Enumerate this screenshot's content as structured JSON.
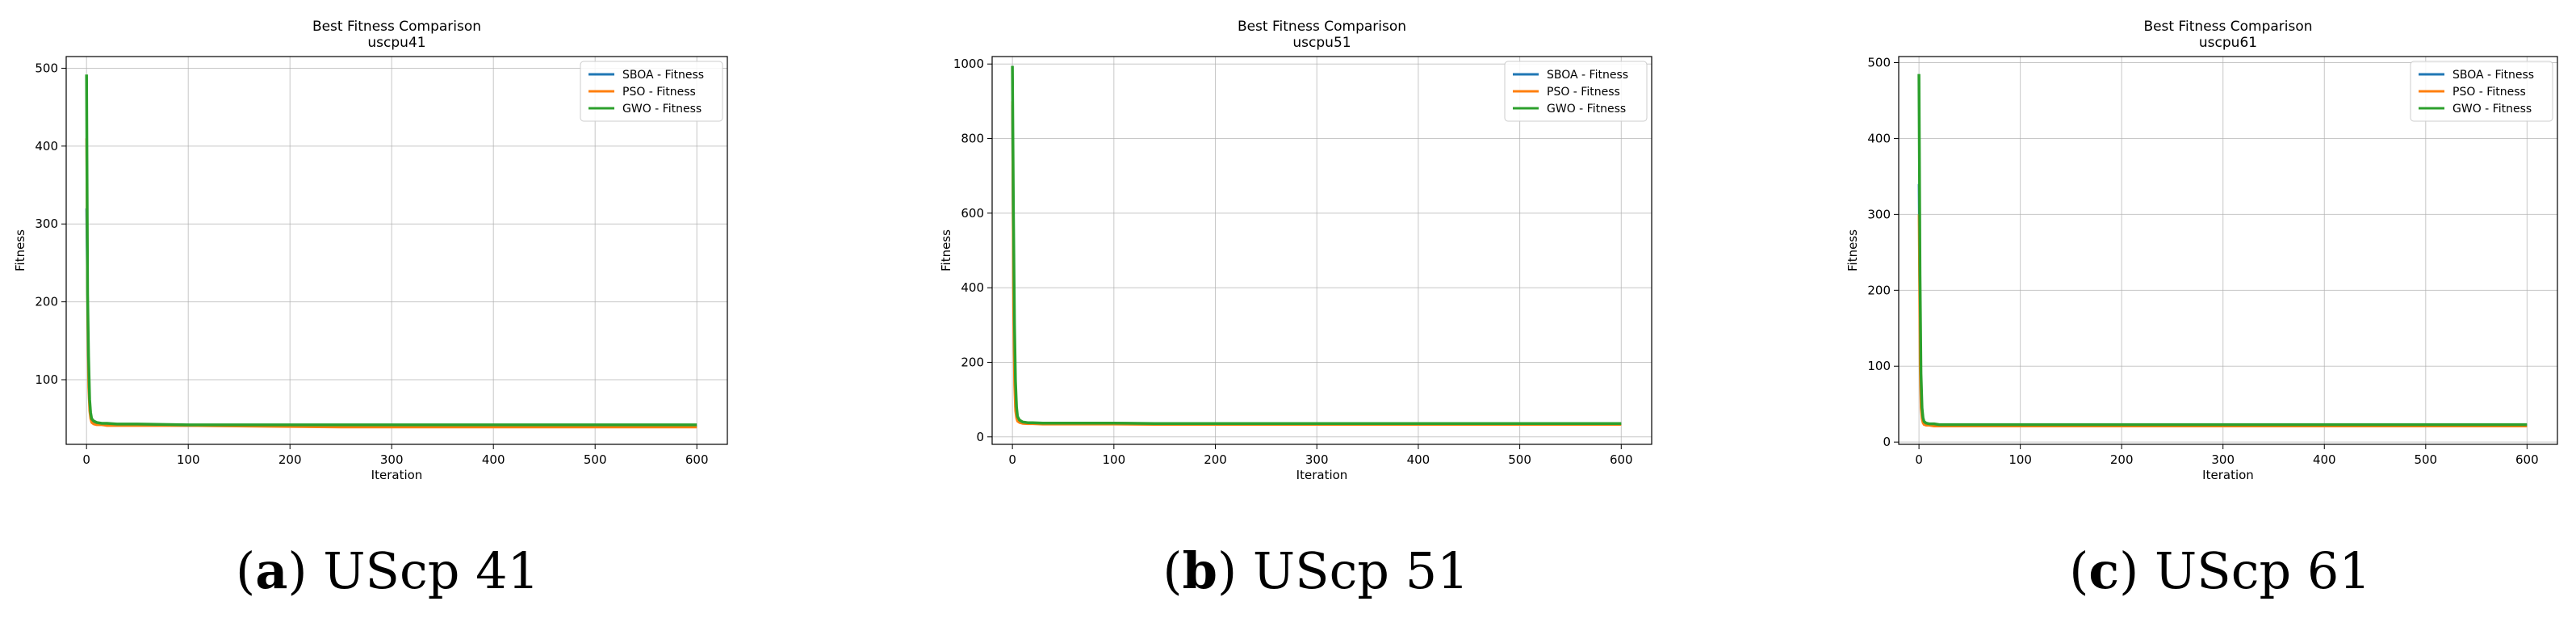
{
  "chart_data": [
    {
      "type": "line",
      "title": "Best Fitness Comparison",
      "subtitle": "uscpu41",
      "xlabel": "Iteration",
      "ylabel": "Fitness",
      "xlim": [
        -20,
        630
      ],
      "ylim": [
        17,
        515
      ],
      "xticks": [
        0,
        100,
        200,
        300,
        400,
        500,
        600
      ],
      "yticks": [
        100,
        200,
        300,
        400,
        500
      ],
      "grid": true,
      "legend_position": "top-right",
      "caption": {
        "letter": "a",
        "text": " UScp 41"
      },
      "series": [
        {
          "name": "SBOA - Fitness",
          "color": "#1f77b4",
          "x": [
            0,
            1,
            2,
            3,
            4,
            5,
            7,
            10,
            15,
            20,
            30,
            50,
            100,
            250,
            600
          ],
          "y": [
            320,
            200,
            110,
            70,
            55,
            48,
            45,
            44,
            43,
            43,
            42,
            42,
            41,
            40,
            40
          ]
        },
        {
          "name": "PSO - Fitness",
          "color": "#ff7f0e",
          "x": [
            0,
            1,
            2,
            3,
            4,
            5,
            7,
            10,
            15,
            20,
            30,
            50,
            100,
            250,
            600
          ],
          "y": [
            410,
            180,
            90,
            60,
            50,
            45,
            43,
            42,
            42,
            41,
            41,
            41,
            41,
            39,
            39
          ]
        },
        {
          "name": "GWO - Fitness",
          "color": "#2ca02c",
          "x": [
            0,
            1,
            2,
            3,
            4,
            5,
            7,
            10,
            15,
            20,
            30,
            50,
            100,
            250,
            600
          ],
          "y": [
            492,
            210,
            130,
            75,
            58,
            50,
            47,
            45,
            44,
            44,
            43,
            43,
            42,
            42,
            42
          ]
        }
      ]
    },
    {
      "type": "line",
      "title": "Best Fitness Comparison",
      "subtitle": "uscpu51",
      "xlabel": "Iteration",
      "ylabel": "Fitness",
      "xlim": [
        -20,
        630
      ],
      "ylim": [
        -20,
        1020
      ],
      "xticks": [
        0,
        100,
        200,
        300,
        400,
        500,
        600
      ],
      "yticks": [
        0,
        200,
        400,
        600,
        800,
        1000
      ],
      "grid": true,
      "legend_position": "top-right",
      "caption": {
        "letter": "b",
        "text": " UScp 51"
      },
      "series": [
        {
          "name": "SBOA - Fitness",
          "color": "#1f77b4",
          "x": [
            0,
            1,
            2,
            3,
            4,
            5,
            7,
            10,
            15,
            20,
            30,
            50,
            100,
            140,
            600
          ],
          "y": [
            890,
            400,
            180,
            80,
            55,
            45,
            40,
            38,
            37,
            37,
            36,
            36,
            36,
            35,
            35
          ]
        },
        {
          "name": "PSO - Fitness",
          "color": "#ff7f0e",
          "x": [
            0,
            1,
            2,
            3,
            4,
            5,
            7,
            10,
            15,
            20,
            30,
            50,
            100,
            140,
            600
          ],
          "y": [
            900,
            350,
            140,
            70,
            50,
            42,
            38,
            36,
            35,
            35,
            34,
            34,
            34,
            33,
            33
          ]
        },
        {
          "name": "GWO - Fitness",
          "color": "#2ca02c",
          "x": [
            0,
            1,
            2,
            3,
            4,
            5,
            7,
            10,
            15,
            20,
            30,
            50,
            100,
            140,
            600
          ],
          "y": [
            995,
            600,
            300,
            150,
            80,
            55,
            45,
            40,
            38,
            38,
            37,
            37,
            37,
            36,
            36
          ]
        }
      ]
    },
    {
      "type": "line",
      "title": "Best Fitness Comparison",
      "subtitle": "uscpu61",
      "xlabel": "Iteration",
      "ylabel": "Fitness",
      "xlim": [
        -20,
        630
      ],
      "ylim": [
        -3,
        508
      ],
      "xticks": [
        0,
        100,
        200,
        300,
        400,
        500,
        600
      ],
      "yticks": [
        0,
        100,
        200,
        300,
        400,
        500
      ],
      "grid": true,
      "legend_position": "top-right",
      "caption": {
        "letter": "c",
        "text": " UScp 61"
      },
      "series": [
        {
          "name": "SBOA - Fitness",
          "color": "#1f77b4",
          "x": [
            0,
            1,
            2,
            3,
            4,
            5,
            7,
            10,
            15,
            20,
            30,
            50,
            100,
            600
          ],
          "y": [
            340,
            150,
            60,
            35,
            28,
            25,
            24,
            23,
            23,
            23,
            22,
            22,
            22,
            22
          ]
        },
        {
          "name": "PSO - Fitness",
          "color": "#ff7f0e",
          "x": [
            0,
            1,
            2,
            3,
            4,
            5,
            7,
            10,
            15,
            20,
            30,
            50,
            100,
            600
          ],
          "y": [
            300,
            100,
            45,
            30,
            25,
            23,
            22,
            22,
            21,
            21,
            21,
            21,
            21,
            21
          ]
        },
        {
          "name": "GWO - Fitness",
          "color": "#2ca02c",
          "x": [
            0,
            1,
            2,
            3,
            4,
            5,
            7,
            10,
            15,
            20,
            30,
            50,
            100,
            600
          ],
          "y": [
            485,
            220,
            90,
            45,
            32,
            27,
            25,
            24,
            24,
            23,
            23,
            23,
            23,
            23
          ]
        }
      ]
    }
  ]
}
